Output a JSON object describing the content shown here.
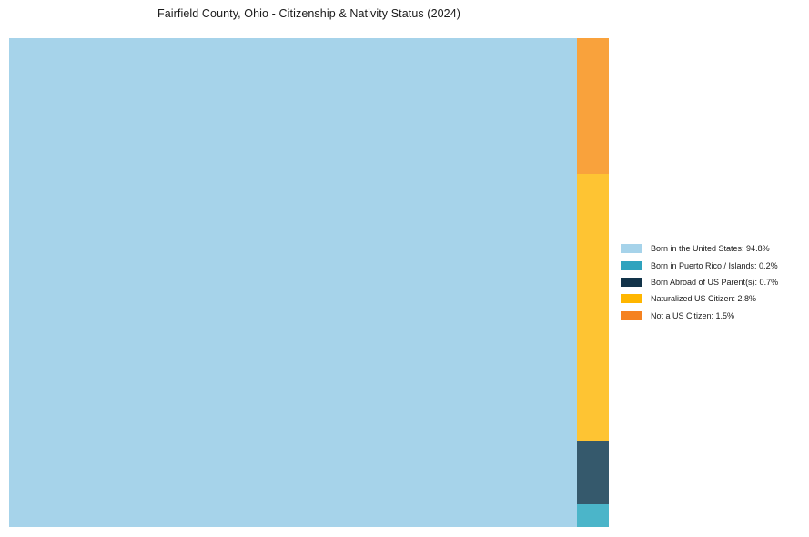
{
  "header": {
    "title": "Fairfield County, Ohio - Citizenship & Nativity Status (2024)"
  },
  "chart_data": {
    "type": "treemap",
    "title": "Fairfield County, Ohio - Citizenship & Nativity Status (2024)",
    "unit": "percent",
    "legend_position": "right",
    "items": [
      {
        "label": "Born in the United States",
        "value": 94.8,
        "rect_color": "#A6D3EA",
        "legend_color": "#A6D3EA"
      },
      {
        "label": "Born in Puerto Rico / Islands",
        "value": 0.2,
        "rect_color": "#4BB5C9",
        "legend_color": "#2FA3BE"
      },
      {
        "label": "Born Abroad of US Parent(s)",
        "value": 0.7,
        "rect_color": "#35596C",
        "legend_color": "#123349"
      },
      {
        "label": "Naturalized US Citizen",
        "value": 2.8,
        "rect_color": "#FEC433",
        "legend_color": "#FFB600"
      },
      {
        "label": "Not a US Citizen",
        "value": 1.5,
        "rect_color": "#F9A23C",
        "legend_color": "#F58220"
      }
    ]
  },
  "legend": {
    "items": [
      {
        "label": "Born in the United States: 94.8%"
      },
      {
        "label": "Born in Puerto Rico / Islands: 0.2%"
      },
      {
        "label": "Born Abroad of US Parent(s): 0.7%"
      },
      {
        "label": "Naturalized US Citizen: 2.8%"
      },
      {
        "label": "Not a US Citizen: 1.5%"
      }
    ]
  }
}
